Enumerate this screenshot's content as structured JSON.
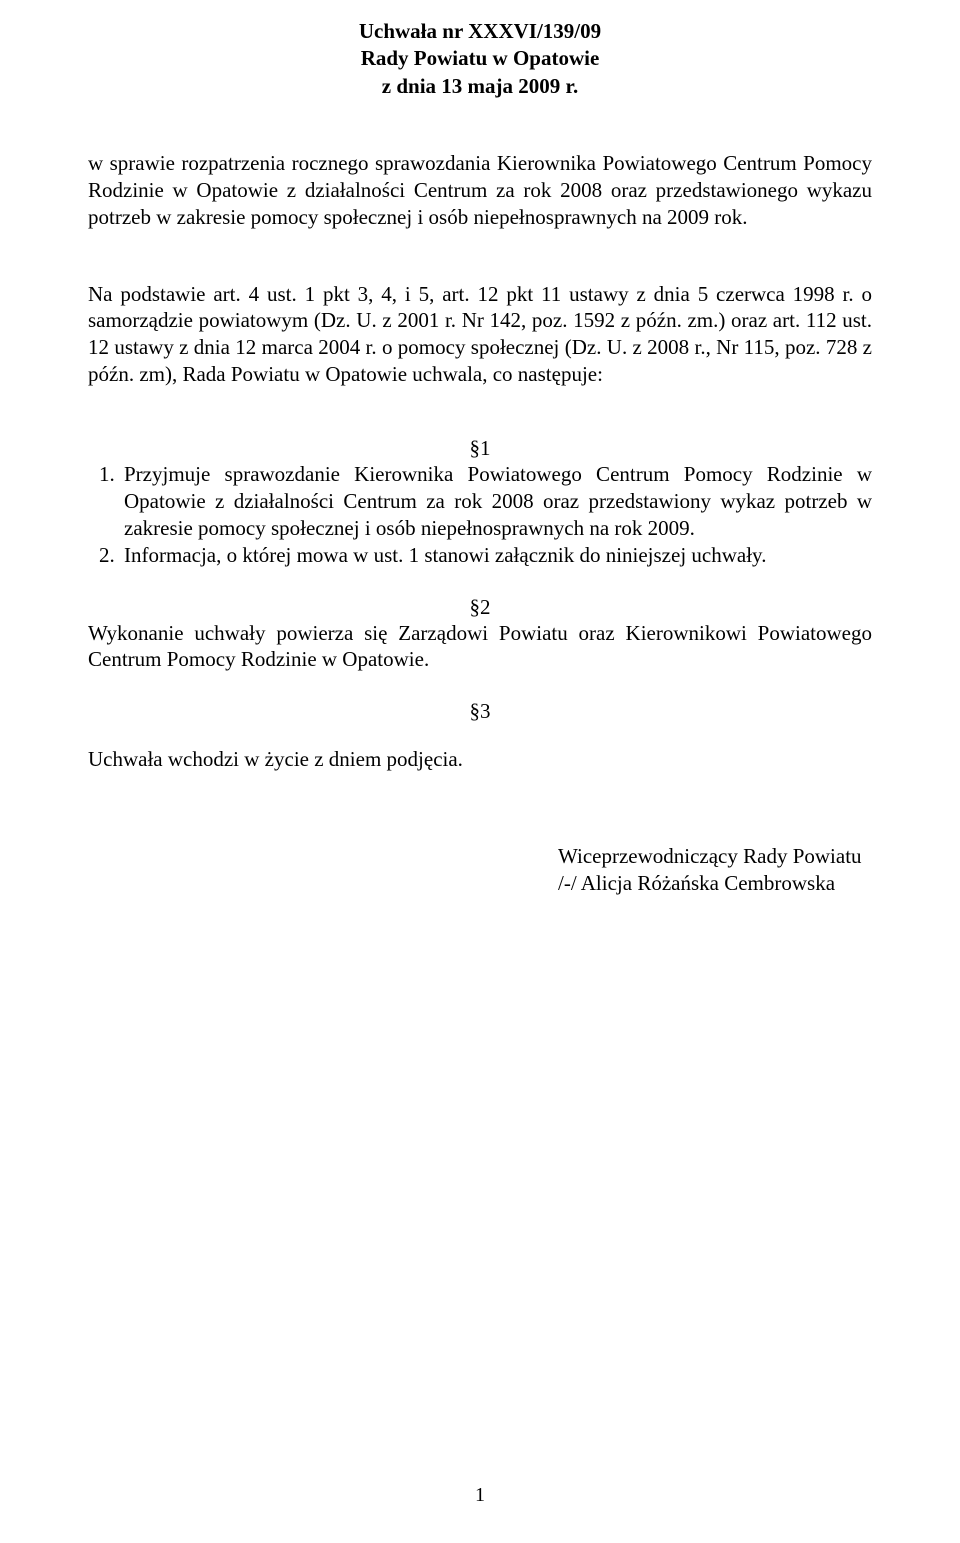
{
  "header": {
    "line1": "Uchwała nr XXXVI/139/09",
    "line2": "Rady Powiatu w Opatowie",
    "line3": "z dnia 13 maja 2009 r."
  },
  "subject": "w sprawie rozpatrzenia rocznego sprawozdania Kierownika Powiatowego Centrum Pomocy Rodzinie w Opatowie z działalności Centrum za rok 2008 oraz przedstawionego wykazu potrzeb w zakresie pomocy społecznej i osób niepełnosprawnych na 2009 rok.",
  "basis": "Na podstawie art. 4 ust. 1 pkt 3, 4, i 5, art. 12 pkt 11 ustawy z dnia 5 czerwca 1998 r. o samorządzie  powiatowym (Dz. U. z 2001 r. Nr 142, poz. 1592 z późn. zm.) oraz art. 112 ust. 12 ustawy z dnia 12 marca 2004 r. o pomocy społecznej (Dz. U. z 2008 r., Nr 115, poz. 728 z późn. zm), Rada Powiatu w Opatowie uchwala, co następuje:",
  "sections": {
    "s1": {
      "mark": "§1",
      "items": [
        "Przyjmuje sprawozdanie Kierownika Powiatowego Centrum Pomocy Rodzinie w Opatowie z działalności Centrum za rok 2008 oraz przedstawiony wykaz potrzeb w zakresie pomocy społecznej i osób niepełnosprawnych na rok 2009.",
        "Informacja, o której mowa w ust. 1 stanowi załącznik do niniejszej uchwały."
      ]
    },
    "s2": {
      "mark": "§2",
      "text": "Wykonanie uchwały powierza się Zarządowi Powiatu oraz Kierownikowi Powiatowego Centrum Pomocy Rodzinie w Opatowie."
    },
    "s3": {
      "mark": "§3",
      "text": "Uchwała wchodzi w życie z dniem podjęcia."
    }
  },
  "signature": {
    "title": "Wiceprzewodniczący Rady Powiatu",
    "name": "/-/ Alicja Różańska Cembrowska"
  },
  "page_number": "1"
}
